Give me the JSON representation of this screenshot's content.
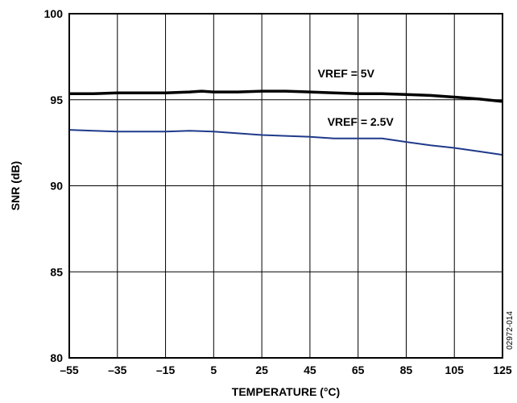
{
  "chart_data": {
    "type": "line",
    "title": "",
    "xlabel": "TEMPERATURE (°C)",
    "ylabel": "SNR (dB)",
    "xlim": [
      -55,
      125
    ],
    "ylim": [
      80,
      100
    ],
    "x_ticks": [
      "–55",
      "–35",
      "–15",
      "5",
      "25",
      "45",
      "65",
      "85",
      "105",
      "125"
    ],
    "y_ticks": [
      "80",
      "85",
      "90",
      "95",
      "100"
    ],
    "x_tick_values": [
      -55,
      -35,
      -15,
      5,
      25,
      45,
      65,
      85,
      105,
      125
    ],
    "y_tick_values": [
      80,
      85,
      90,
      95,
      100
    ],
    "grid": true,
    "series": [
      {
        "name": "VREF = 5V",
        "color": "#000000",
        "x": [
          -55,
          -45,
          -35,
          -25,
          -15,
          -5,
          0,
          5,
          15,
          25,
          35,
          45,
          55,
          65,
          75,
          85,
          95,
          105,
          115,
          125
        ],
        "y": [
          95.35,
          95.35,
          95.4,
          95.4,
          95.4,
          95.45,
          95.5,
          95.45,
          95.45,
          95.5,
          95.5,
          95.45,
          95.4,
          95.35,
          95.35,
          95.3,
          95.25,
          95.15,
          95.05,
          94.9
        ]
      },
      {
        "name": "VREF = 2.5V",
        "color": "#1f3a8a",
        "x": [
          -55,
          -45,
          -35,
          -25,
          -15,
          -5,
          5,
          15,
          25,
          35,
          45,
          55,
          65,
          75,
          85,
          95,
          105,
          115,
          125
        ],
        "y": [
          93.25,
          93.2,
          93.15,
          93.15,
          93.15,
          93.2,
          93.15,
          93.05,
          92.95,
          92.9,
          92.85,
          92.75,
          92.75,
          92.75,
          92.55,
          92.35,
          92.2,
          92.0,
          91.8
        ]
      }
    ],
    "annotations": [
      {
        "text": "VREF = 5V",
        "x": 60,
        "y": 96.3
      },
      {
        "text": "VREF = 2.5V",
        "x": 66,
        "y": 93.5
      }
    ],
    "figure_code": "02972-014"
  }
}
